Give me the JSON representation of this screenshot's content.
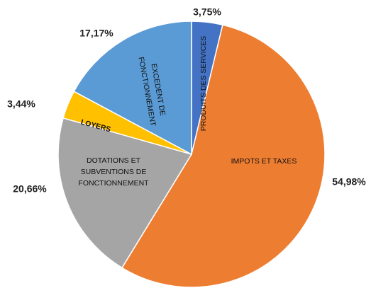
{
  "chart_data": {
    "type": "pie",
    "categories": [
      "PRODUITS DES SERVICES",
      "IMPOTS ET TAXES",
      "DOTATIONS ET SUBVENTIONS DE FONCTIONNEMENT",
      "LOYERS",
      "EXCEDENT DE FONCTIONNEMENT"
    ],
    "values": [
      3.75,
      54.98,
      20.66,
      3.44,
      17.17
    ],
    "value_labels": [
      "3,75%",
      "54,98%",
      "20,66%",
      "3,44%",
      "17,17%"
    ],
    "colors": [
      "#4472c4",
      "#ed7d31",
      "#a5a5a5",
      "#ffc000",
      "#5b9bd5"
    ]
  }
}
